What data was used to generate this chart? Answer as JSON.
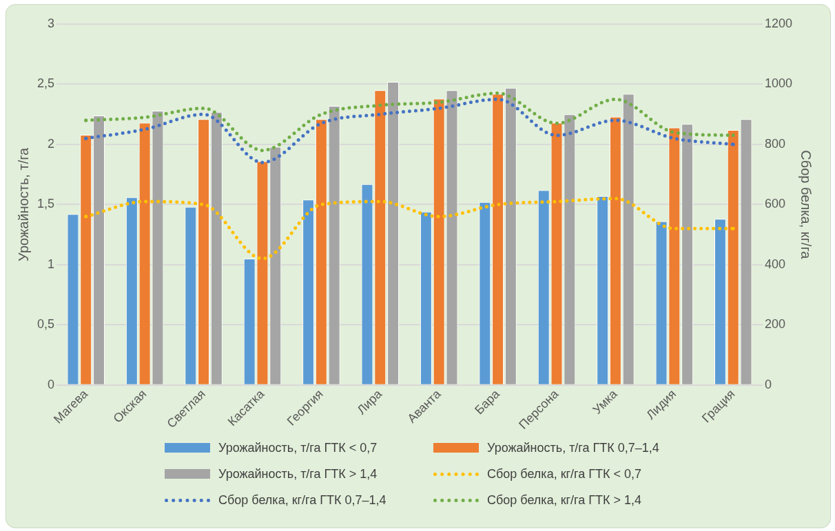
{
  "chart_data": {
    "type": "bar",
    "ylabel": "Урожайность, т/га",
    "y2label": "Сбор белка, кг/га",
    "categories": [
      "Магева",
      "Окская",
      "Светлая",
      "Касатка",
      "Георгия",
      "Лира",
      "Аванта",
      "Бара",
      "Персона",
      "Умка",
      "Лидия",
      "Грация"
    ],
    "series": [
      {
        "name": "Урожайность, т/га ГТК < 0,7",
        "color": "#5b9bd5",
        "values": [
          1.42,
          1.56,
          1.48,
          1.05,
          1.54,
          1.67,
          1.44,
          1.52,
          1.62,
          1.57,
          1.36,
          1.38
        ]
      },
      {
        "name": "Урожайность, т/га ГТК 0,7–1,4",
        "color": "#ed7d31",
        "values": [
          2.08,
          2.18,
          2.21,
          1.86,
          2.21,
          2.45,
          2.38,
          2.42,
          2.18,
          2.23,
          2.14,
          2.12
        ]
      },
      {
        "name": "Урожайность, т/га ГТК > 1,4",
        "color": "#a5a5a5",
        "values": [
          2.24,
          2.28,
          2.27,
          1.98,
          2.32,
          2.52,
          2.45,
          2.47,
          2.25,
          2.42,
          2.17,
          2.21
        ]
      },
      {
        "name": "Сбор белка, кг/га ГТК < 0,7",
        "type": "line",
        "axis": "y2",
        "line_style": "dotted",
        "marker": "none",
        "color": "#ffc000",
        "values": [
          560,
          610,
          600,
          420,
          600,
          610,
          560,
          600,
          610,
          620,
          520,
          520
        ]
      },
      {
        "name": "Сбор белка, кг/га ГТК 0,7–1,4",
        "type": "line",
        "axis": "y2",
        "line_style": "dotted",
        "marker": "none",
        "color": "#4472c4",
        "values": [
          820,
          850,
          900,
          740,
          870,
          900,
          920,
          950,
          830,
          880,
          820,
          800
        ]
      },
      {
        "name": "Сбор белка, кг/га ГТК > 1,4",
        "type": "line",
        "axis": "y2",
        "line_style": "dotted",
        "marker": "none",
        "color": "#70ad47",
        "values": [
          880,
          890,
          920,
          780,
          900,
          930,
          940,
          970,
          870,
          950,
          840,
          830
        ]
      }
    ],
    "ylim": [
      0,
      3
    ],
    "yticks": [
      0,
      {
        "value": 0.5,
        "label": "0,5"
      },
      1,
      {
        "value": 1.5,
        "label": "1,5"
      },
      2,
      {
        "value": 2.5,
        "label": "2,5"
      },
      3
    ],
    "y2lim": [
      0,
      1200
    ],
    "y2ticks": [
      0,
      200,
      400,
      600,
      800,
      1000,
      1200
    ],
    "grid": "y",
    "legend": "bottom"
  }
}
